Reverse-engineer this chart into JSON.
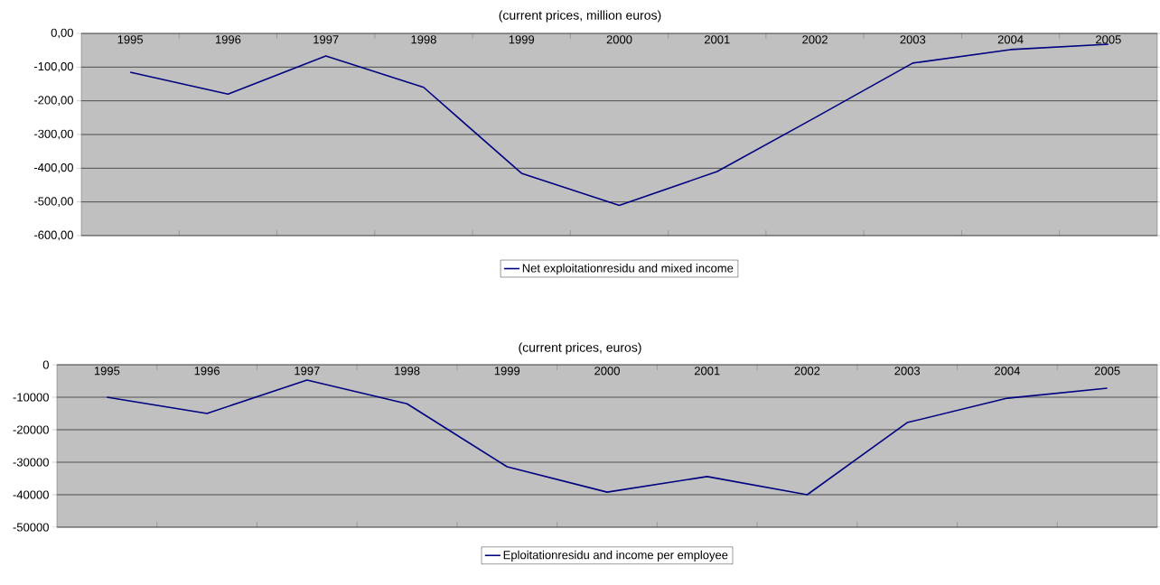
{
  "chart_data": [
    {
      "type": "line",
      "title": "(current prices, million euros)",
      "categories": [
        "1995",
        "1996",
        "1997",
        "1998",
        "1999",
        "2000",
        "2001",
        "2002",
        "2003",
        "2004",
        "2005"
      ],
      "series": [
        {
          "name": "Net exploitationresidu and mixed income",
          "color": "#000080",
          "values": [
            -115,
            -180,
            -67,
            -160,
            -415,
            -510,
            -410,
            -250,
            -88,
            -48,
            -32
          ]
        }
      ],
      "ylim": [
        -600,
        0
      ],
      "yticks": [
        {
          "value": -600,
          "label": "-600,00"
        },
        {
          "value": -500,
          "label": "-500,00"
        },
        {
          "value": -400,
          "label": "-400,00"
        },
        {
          "value": -300,
          "label": "-300,00"
        },
        {
          "value": -200,
          "label": "-200,00"
        },
        {
          "value": -100,
          "label": "-100,00"
        },
        {
          "value": 0,
          "label": "0,00"
        }
      ],
      "grid": "y",
      "legend": "bottom"
    },
    {
      "type": "line",
      "title": "(current prices, euros)",
      "categories": [
        "1995",
        "1996",
        "1997",
        "1998",
        "1999",
        "2000",
        "2001",
        "2002",
        "2003",
        "2004",
        "2005"
      ],
      "series": [
        {
          "name": "Eploitationresidu and income per employee",
          "color": "#000080",
          "values": [
            -10000,
            -15000,
            -4700,
            -12000,
            -31400,
            -39200,
            -34400,
            -40000,
            -17800,
            -10300,
            -7200
          ]
        }
      ],
      "ylim": [
        -50000,
        0
      ],
      "yticks": [
        -50000,
        -40000,
        -30000,
        -20000,
        -10000,
        0
      ],
      "grid": "y",
      "legend": "bottom"
    }
  ]
}
